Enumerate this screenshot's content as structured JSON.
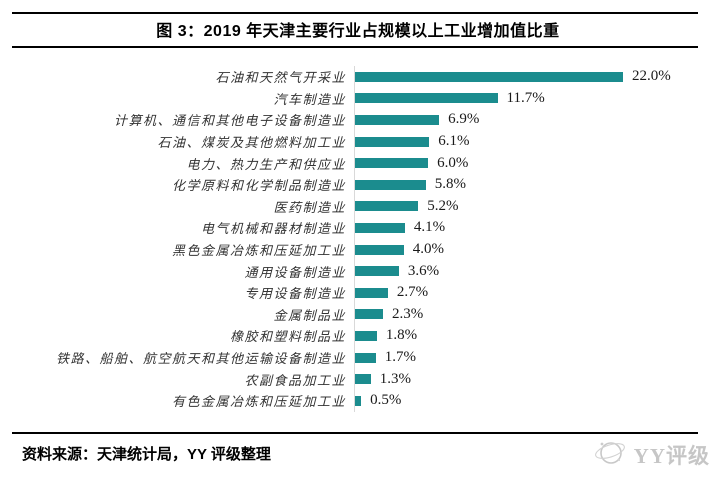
{
  "header": {
    "title": "图 3：2019 年天津主要行业占规模以上工业增加值比重"
  },
  "chart_data": {
    "type": "bar",
    "orientation": "horizontal",
    "title": "图 3：2019 年天津主要行业占规模以上工业增加值比重",
    "xlabel": "",
    "ylabel": "",
    "unit": "%",
    "grid": false,
    "legend": "none",
    "data_labels": true,
    "xlim": [
      0,
      24
    ],
    "bar_color": "#1b8c8e",
    "axis_line_color": "#d9d9d9",
    "categories": [
      "石油和天然气开采业",
      "汽车制造业",
      "计算机、通信和其他电子设备制造业",
      "石油、煤炭及其他燃料加工业",
      "电力、热力生产和供应业",
      "化学原料和化学制品制造业",
      "医药制造业",
      "电气机械和器材制造业",
      "黑色金属冶炼和压延加工业",
      "通用设备制造业",
      "专用设备制造业",
      "金属制品业",
      "橡胶和塑料制品业",
      "铁路、船舶、航空航天和其他运输设备制造业",
      "农副食品加工业",
      "有色金属冶炼和压延加工业"
    ],
    "values": [
      22.0,
      11.7,
      6.9,
      6.1,
      6.0,
      5.8,
      5.2,
      4.1,
      4.0,
      3.6,
      2.7,
      2.3,
      1.8,
      1.7,
      1.3,
      0.5
    ],
    "value_labels": [
      "22.0%",
      "11.7%",
      "6.9%",
      "6.1%",
      "6.0%",
      "5.8%",
      "5.2%",
      "4.1%",
      "4.0%",
      "3.6%",
      "2.7%",
      "2.3%",
      "1.8%",
      "1.7%",
      "1.3%",
      "0.5%"
    ]
  },
  "footer": {
    "source": "资料来源：天津统计局，YY 评级整理"
  },
  "watermark": {
    "text": "YY评级"
  }
}
